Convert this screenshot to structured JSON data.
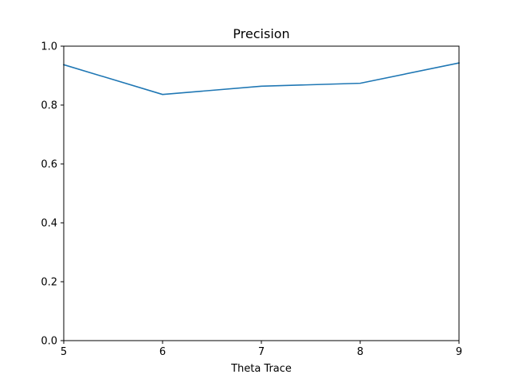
{
  "chart_data": {
    "type": "line",
    "title": "Precision",
    "xlabel": "Theta Trace",
    "ylabel": "",
    "x": [
      5,
      6,
      7,
      8,
      9
    ],
    "series": [
      {
        "values": [
          0.937,
          0.836,
          0.864,
          0.874,
          0.943
        ],
        "color": "#1f77b4"
      }
    ],
    "xlim": [
      5,
      9
    ],
    "ylim": [
      0.0,
      1.0
    ],
    "xticks": [
      5,
      6,
      7,
      8,
      9
    ],
    "xtick_labels": [
      "5",
      "6",
      "7",
      "8",
      "9"
    ],
    "yticks": [
      0.0,
      0.2,
      0.4,
      0.6,
      0.8,
      1.0
    ],
    "ytick_labels": [
      "0.0",
      "0.2",
      "0.4",
      "0.6",
      "0.8",
      "1.0"
    ],
    "grid": false,
    "legend": "none"
  }
}
